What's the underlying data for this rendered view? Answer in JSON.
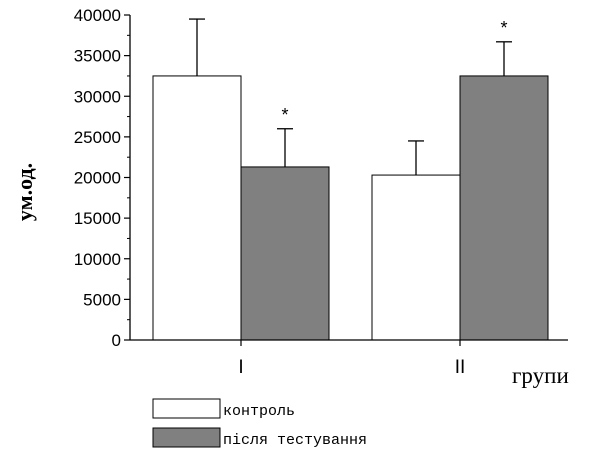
{
  "chart_data": {
    "type": "bar",
    "xlabel": "групи",
    "ylabel": "ум.од.",
    "categories": [
      "I",
      "II"
    ],
    "ylim": [
      0,
      40000
    ],
    "yticks": [
      0,
      5000,
      10000,
      15000,
      20000,
      25000,
      30000,
      35000,
      40000
    ],
    "series": [
      {
        "name": "контроль",
        "color": "#ffffff",
        "values": [
          32500,
          20300
        ],
        "error": [
          7000,
          4200
        ],
        "significance": [
          "",
          ""
        ]
      },
      {
        "name": "після тестування",
        "color": "#808080",
        "values": [
          21300,
          32500
        ],
        "error": [
          4700,
          4200
        ],
        "significance": [
          "*",
          "*"
        ]
      }
    ],
    "legend_position": "bottom"
  }
}
